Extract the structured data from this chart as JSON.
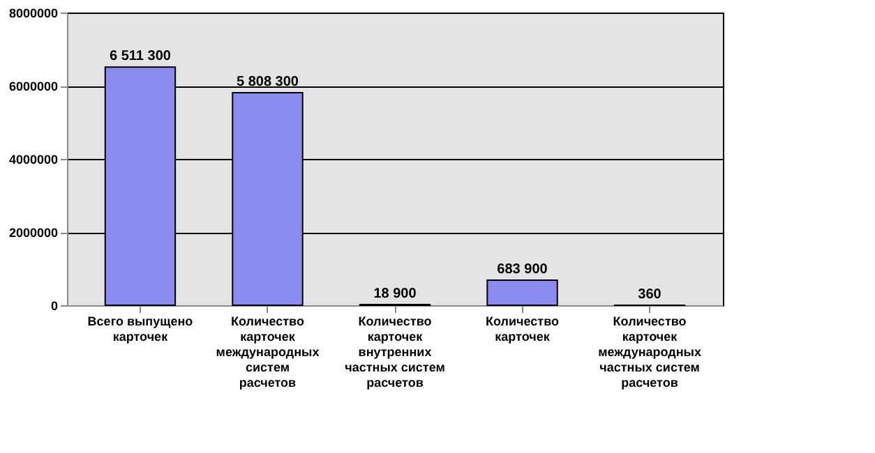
{
  "chart_data": {
    "type": "bar",
    "categories": [
      "Всего выпущено карточек",
      "Количество карточек международных систем расчетов",
      "Количество карточек внутренних частных систем расчетов",
      "Количество карточек",
      "Количество карточек международных частных систем расчетов"
    ],
    "values": [
      6511300,
      5808300,
      18900,
      683900,
      360
    ],
    "value_labels": [
      "6 511 300",
      "5 808 300",
      "18 900",
      "683 900",
      "360"
    ],
    "color": "#8c8cf0",
    "ylim": [
      0,
      8000000
    ],
    "yticks": [
      0,
      2000000,
      4000000,
      6000000,
      8000000
    ],
    "grid": "y"
  }
}
